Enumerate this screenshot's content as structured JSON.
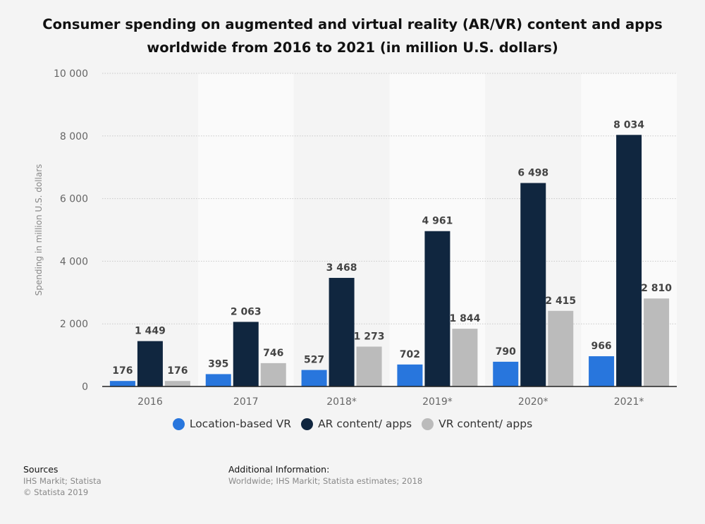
{
  "title_line1": "Consumer spending on augmented and virtual reality (AR/VR) content and apps",
  "title_line2": "worldwide from 2016 to 2021 (in million U.S. dollars)",
  "chart_data": {
    "type": "bar",
    "title": "Consumer spending on augmented and virtual reality (AR/VR) content and apps worldwide from 2016 to 2021 (in million U.S. dollars)",
    "xlabel": "",
    "ylabel": "Spending in million U.S. dollars",
    "ylim": [
      0,
      10000
    ],
    "yticks": [
      0,
      2000,
      4000,
      6000,
      8000,
      10000
    ],
    "ytick_labels": [
      "0",
      "2 000",
      "4 000",
      "6 000",
      "8 000",
      "10 000"
    ],
    "grid": true,
    "legend_position": "bottom",
    "categories": [
      "2016",
      "2017",
      "2018*",
      "2019*",
      "2020*",
      "2021*"
    ],
    "series": [
      {
        "name": "Location-based VR",
        "color": "#2876dd",
        "values": [
          176,
          395,
          527,
          702,
          790,
          966
        ],
        "labels": [
          "176",
          "395",
          "527",
          "702",
          "790",
          "966"
        ]
      },
      {
        "name": "AR content/ apps",
        "color": "#10263f",
        "values": [
          1449,
          2063,
          3468,
          4961,
          6498,
          8034
        ],
        "labels": [
          "1 449",
          "2 063",
          "3 468",
          "4 961",
          "6 498",
          "8 034"
        ]
      },
      {
        "name": "VR content/ apps",
        "color": "#bbbbbb",
        "values": [
          176,
          746,
          1273,
          1844,
          2415,
          2810
        ],
        "labels": [
          "176",
          "746",
          "1 273",
          "1 844",
          "2 415",
          "2 810"
        ]
      }
    ]
  },
  "footer": {
    "sources_heading": "Sources",
    "sources_line1": "IHS Markit; Statista",
    "sources_line2": "© Statista 2019",
    "additional_heading": "Additional Information:",
    "additional_text": "Worldwide; IHS Markit; Statista estimates; 2018"
  }
}
